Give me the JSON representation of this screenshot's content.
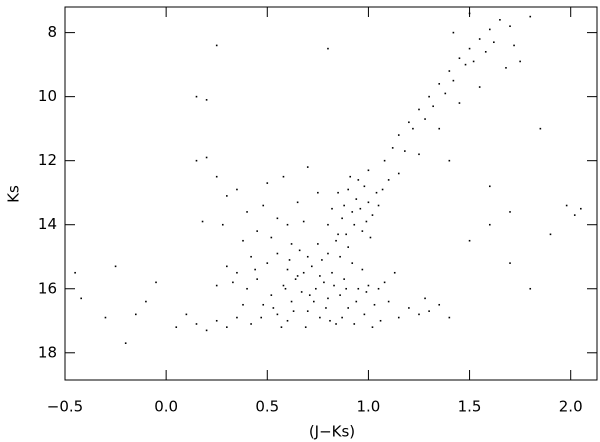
{
  "chart_data": {
    "type": "scatter",
    "xlabel": "(J−Ks)",
    "ylabel": "Ks",
    "xlim": [
      -0.5,
      2.13
    ],
    "ylim": [
      18.85,
      7.2
    ],
    "xticks": [
      {
        "value": -0.5,
        "label": "−0.5"
      },
      {
        "value": 0,
        "label": "0.0"
      },
      0.5,
      {
        "value": 1,
        "label": "1.0"
      },
      1.5,
      {
        "value": 2,
        "label": "2.0"
      }
    ],
    "yticks": [
      8,
      10,
      12,
      14,
      16,
      18
    ],
    "color": "#000000",
    "x": [
      0.35,
      0.42,
      0.48,
      0.52,
      0.55,
      0.58,
      0.6,
      0.62,
      0.65,
      0.67,
      0.7,
      0.72,
      0.74,
      0.76,
      0.78,
      0.8,
      0.82,
      0.84,
      0.86,
      0.88,
      0.9,
      0.92,
      0.95,
      0.98,
      1.0,
      1.03,
      1.06,
      1.1,
      1.15,
      1.2,
      0.3,
      0.25,
      0.2,
      0.15,
      0.45,
      0.5,
      0.55,
      0.6,
      0.66,
      0.7,
      0.75,
      0.8,
      0.85,
      0.9,
      0.4,
      0.38,
      0.44,
      0.57,
      0.63,
      0.69,
      0.73,
      0.77,
      0.81,
      0.87,
      0.93,
      0.97,
      1.02,
      1.08,
      1.13,
      1.25,
      1.3,
      1.35,
      1.4,
      1.28,
      0.05,
      0.1,
      0.33,
      0.47,
      0.53,
      0.59,
      0.64,
      0.71,
      0.79,
      0.83,
      0.89,
      0.94,
      0.99,
      1.05,
      0.61,
      0.68,
      0.76,
      0.86,
      0.85,
      0.88,
      0.9,
      0.92,
      0.94,
      0.96,
      0.98,
      1.0,
      1.02,
      1.04,
      0.87,
      0.93,
      0.97,
      1.01,
      0.95,
      1.05,
      0.82,
      0.8,
      0.99,
      0.91,
      1.07,
      1.0,
      1.1,
      0.89,
      0.84,
      1.08,
      1.12,
      1.15,
      1.18,
      1.2,
      1.22,
      1.25,
      1.28,
      1.3,
      1.32,
      1.35,
      1.38,
      1.4,
      1.42,
      1.45,
      1.48,
      1.5,
      1.52,
      1.55,
      1.58,
      1.6,
      1.62,
      1.65,
      1.7,
      1.72,
      1.68,
      1.55,
      1.45,
      1.35,
      1.25,
      1.15,
      1.8,
      1.75,
      1.5,
      1.42,
      0.25,
      0.3,
      0.35,
      0.4,
      0.45,
      0.5,
      0.55,
      0.6,
      0.65,
      0.7,
      0.38,
      0.42,
      0.3,
      0.28,
      0.48,
      0.58,
      0.62,
      0.68,
      0.75,
      0.2,
      0.15,
      0.25,
      0.35,
      0.52,
      -0.45,
      -0.42,
      -0.3,
      -0.2,
      -0.15,
      -0.1,
      -0.05,
      0.15,
      0.2,
      0.25,
      0.18,
      1.6,
      1.7,
      1.8,
      1.9,
      2.05,
      1.98,
      1.5,
      1.6,
      1.7,
      0.8,
      2.02,
      1.85,
      1.4,
      -0.25
    ],
    "y": [
      16.9,
      17.1,
      16.5,
      16.2,
      16.8,
      15.9,
      17.0,
      16.4,
      15.6,
      16.1,
      16.7,
      15.3,
      16.0,
      16.9,
      15.8,
      16.3,
      15.5,
      17.1,
      16.2,
      15.7,
      16.6,
      15.2,
      16.0,
      16.8,
      15.9,
      16.5,
      17.0,
      16.4,
      16.9,
      16.6,
      17.2,
      17.0,
      17.3,
      17.1,
      15.7,
      15.2,
      14.9,
      15.4,
      14.8,
      15.0,
      14.6,
      14.9,
      14.3,
      14.7,
      16.0,
      16.5,
      15.4,
      17.2,
      16.7,
      17.2,
      16.4,
      15.1,
      17.0,
      16.9,
      17.1,
      15.4,
      17.2,
      15.8,
      15.5,
      16.8,
      16.7,
      16.5,
      16.9,
      16.3,
      17.2,
      16.8,
      15.8,
      16.9,
      16.6,
      16.0,
      15.7,
      16.2,
      16.6,
      15.9,
      16.0,
      16.4,
      16.1,
      16.0,
      15.1,
      15.5,
      15.6,
      15.0,
      13.0,
      13.4,
      12.9,
      13.6,
      13.2,
      13.5,
      12.8,
      13.3,
      13.7,
      13.0,
      13.8,
      14.0,
      14.2,
      14.4,
      12.6,
      13.4,
      13.5,
      14.0,
      13.9,
      12.5,
      12.9,
      12.3,
      12.6,
      14.3,
      14.5,
      12.0,
      11.6,
      11.2,
      11.7,
      10.8,
      11.0,
      10.4,
      10.7,
      10.0,
      10.3,
      9.6,
      9.9,
      9.2,
      9.5,
      8.8,
      9.0,
      8.5,
      8.9,
      8.2,
      8.6,
      7.9,
      8.3,
      7.6,
      7.8,
      8.4,
      9.1,
      9.7,
      10.2,
      11.0,
      11.8,
      12.4,
      7.5,
      8.9,
      7.4,
      8.0,
      12.5,
      13.1,
      12.9,
      13.6,
      14.2,
      12.7,
      13.8,
      14.0,
      13.3,
      12.2,
      14.5,
      15.0,
      15.3,
      14.0,
      13.4,
      12.5,
      14.6,
      13.9,
      13.0,
      11.9,
      12.0,
      15.9,
      15.5,
      14.4,
      15.5,
      16.3,
      16.9,
      17.7,
      16.8,
      16.4,
      15.8,
      10.0,
      10.1,
      8.4,
      13.9,
      14.0,
      15.2,
      16.0,
      14.3,
      13.5,
      13.4,
      14.5,
      12.8,
      13.6,
      8.5,
      13.7,
      11.0,
      12.0,
      15.3
    ]
  }
}
